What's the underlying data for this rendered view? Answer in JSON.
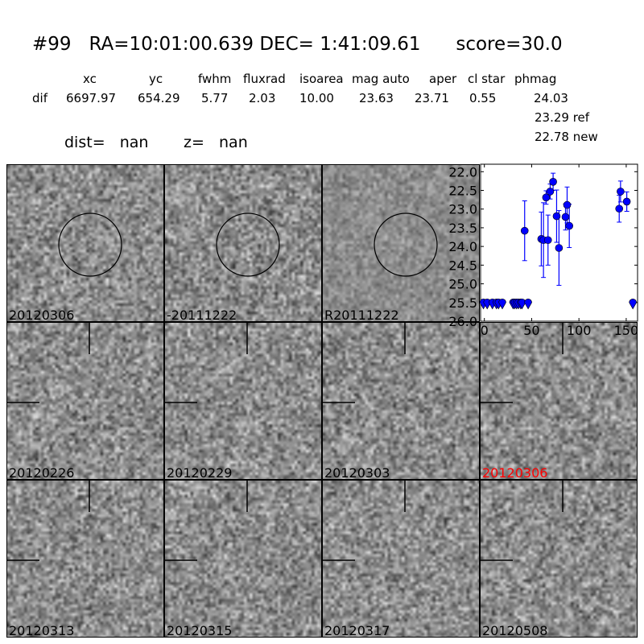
{
  "title": "#99   RA=10:01:00.639 DEC= 1:41:09.61      score=30.0",
  "table": {
    "headers": [
      "xc",
      "yc",
      "fwhm",
      "fluxrad",
      "isoarea",
      "mag auto",
      "aper",
      "cl star",
      "phmag"
    ],
    "row_label": "dif",
    "values": [
      "6697.97",
      "654.29",
      "5.77",
      "2.03",
      "10.00",
      "23.63",
      "23.71",
      "0.55",
      "24.03"
    ],
    "ref": "23.29 ref",
    "new": "22.78 new"
  },
  "dist": "dist=   nan",
  "z": "z=   nan",
  "stamps": [
    {
      "label": "20120306",
      "marker": "circle",
      "color": "#000000"
    },
    {
      "label": "-20111222",
      "marker": "circle",
      "color": "#000000"
    },
    {
      "label": "R20111222",
      "marker": "circle",
      "color": "#000000"
    },
    {
      "label": "20120226",
      "marker": "crosshair",
      "color": "#000000"
    },
    {
      "label": "20120229",
      "marker": "crosshair",
      "color": "#000000"
    },
    {
      "label": "20120303",
      "marker": "crosshair",
      "color": "#000000"
    },
    {
      "label": "20120306",
      "marker": "crosshair",
      "color": "#ff0000"
    },
    {
      "label": "20120313",
      "marker": "crosshair",
      "color": "#000000"
    },
    {
      "label": "20120315",
      "marker": "crosshair",
      "color": "#000000"
    },
    {
      "label": "20120317",
      "marker": "crosshair",
      "color": "#000000"
    },
    {
      "label": "20120508",
      "marker": "crosshair",
      "color": "#000000"
    }
  ],
  "chart_data": {
    "type": "scatter",
    "xlim": [
      -4,
      162
    ],
    "ylim": [
      26.0,
      21.8
    ],
    "y_inverted": true,
    "xticks": [
      "0",
      "50",
      "100",
      "150"
    ],
    "yticks": [
      "22.0",
      "22.5",
      "23.0",
      "23.5",
      "24.0",
      "24.5",
      "25.0",
      "25.5",
      "26.0"
    ],
    "marker_color": "#0000ff",
    "detections": [
      {
        "x": 42.6,
        "y": 23.58,
        "err": 0.8
      },
      {
        "x": 60.2,
        "y": 23.8,
        "err": 0.72
      },
      {
        "x": 62.5,
        "y": 23.83,
        "err": 1.0
      },
      {
        "x": 65.3,
        "y": 22.69,
        "err": 0.18
      },
      {
        "x": 67.3,
        "y": 23.83,
        "err": 0.67
      },
      {
        "x": 69.6,
        "y": 22.53,
        "err": 0.2
      },
      {
        "x": 72.7,
        "y": 22.27,
        "err": 0.23
      },
      {
        "x": 76.4,
        "y": 23.19,
        "err": 0.7
      },
      {
        "x": 78.9,
        "y": 24.04,
        "err": 1.0
      },
      {
        "x": 85.8,
        "y": 23.21,
        "err": 0.35
      },
      {
        "x": 87.5,
        "y": 22.89,
        "err": 0.48
      },
      {
        "x": 89.8,
        "y": 23.45,
        "err": 0.58
      },
      {
        "x": 142.6,
        "y": 22.99,
        "err": 0.36
      },
      {
        "x": 144.0,
        "y": 22.53,
        "err": 0.28
      },
      {
        "x": 150.6,
        "y": 22.8,
        "err": 0.26
      }
    ],
    "upper_limits": {
      "y": 25.5,
      "x": [
        -1,
        3,
        8.5,
        12.8,
        15,
        19,
        30.4,
        32,
        34,
        36,
        38.4,
        39.8,
        46.3,
        157
      ]
    }
  }
}
